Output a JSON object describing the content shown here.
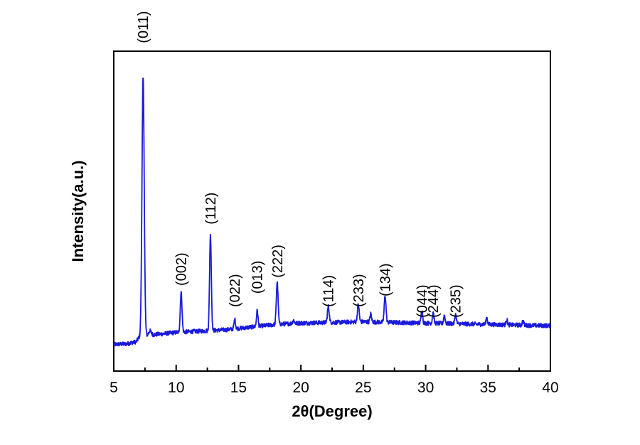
{
  "chart_data": {
    "type": "line",
    "xlabel": "2θ(Degree)",
    "ylabel": "Intensity(a.u.)",
    "xlim": [
      5,
      40
    ],
    "ylim": [
      -0.5,
      11.5
    ],
    "x_ticks": [
      5,
      10,
      15,
      20,
      25,
      30,
      35,
      40
    ],
    "y_ticks_shown": false,
    "grid": false,
    "legend": "none",
    "line_color": "#1a1adc",
    "baseline": [
      [
        5.0,
        0.5
      ],
      [
        6.0,
        0.52
      ],
      [
        6.8,
        0.6
      ],
      [
        7.0,
        0.75
      ],
      [
        7.8,
        0.85
      ],
      [
        9.0,
        0.9
      ],
      [
        10.0,
        0.95
      ],
      [
        12.0,
        1.0
      ],
      [
        14.0,
        1.05
      ],
      [
        16.0,
        1.15
      ],
      [
        18.0,
        1.25
      ],
      [
        20.0,
        1.3
      ],
      [
        25.0,
        1.35
      ],
      [
        30.0,
        1.3
      ],
      [
        35.0,
        1.25
      ],
      [
        40.0,
        1.2
      ]
    ],
    "peaks": [
      {
        "x": 7.35,
        "height": 9.7,
        "width": 0.09,
        "label": "(011)"
      },
      {
        "x": 7.9,
        "height": 0.15,
        "width": 0.1,
        "label": ""
      },
      {
        "x": 10.4,
        "height": 1.5,
        "width": 0.07,
        "label": "(002)"
      },
      {
        "x": 12.75,
        "height": 3.6,
        "width": 0.07,
        "label": "(112)"
      },
      {
        "x": 14.7,
        "height": 0.35,
        "width": 0.06,
        "label": "(022)"
      },
      {
        "x": 16.5,
        "height": 0.6,
        "width": 0.06,
        "label": "(013)"
      },
      {
        "x": 18.1,
        "height": 1.6,
        "width": 0.07,
        "label": "(222)"
      },
      {
        "x": 19.4,
        "height": 0.12,
        "width": 0.07,
        "label": ""
      },
      {
        "x": 22.2,
        "height": 0.6,
        "width": 0.07,
        "label": "(114)"
      },
      {
        "x": 24.6,
        "height": 0.65,
        "width": 0.07,
        "label": "(233)"
      },
      {
        "x": 25.6,
        "height": 0.3,
        "width": 0.06,
        "label": ""
      },
      {
        "x": 26.75,
        "height": 1.0,
        "width": 0.07,
        "label": "(134)"
      },
      {
        "x": 29.7,
        "height": 0.5,
        "width": 0.06,
        "label": "(044)"
      },
      {
        "x": 30.6,
        "height": 0.4,
        "width": 0.06,
        "label": "(244)"
      },
      {
        "x": 31.5,
        "height": 0.3,
        "width": 0.06,
        "label": ""
      },
      {
        "x": 32.4,
        "height": 0.35,
        "width": 0.06,
        "label": "(235)"
      },
      {
        "x": 34.9,
        "height": 0.25,
        "width": 0.06,
        "label": ""
      },
      {
        "x": 36.5,
        "height": 0.2,
        "width": 0.06,
        "label": ""
      },
      {
        "x": 37.8,
        "height": 0.15,
        "width": 0.06,
        "label": ""
      }
    ],
    "label_y": [
      11.8,
      2.7,
      5.0,
      1.9,
      2.4,
      3.0,
      1.9,
      1.9,
      2.3,
      1.5,
      1.5,
      1.5
    ]
  }
}
